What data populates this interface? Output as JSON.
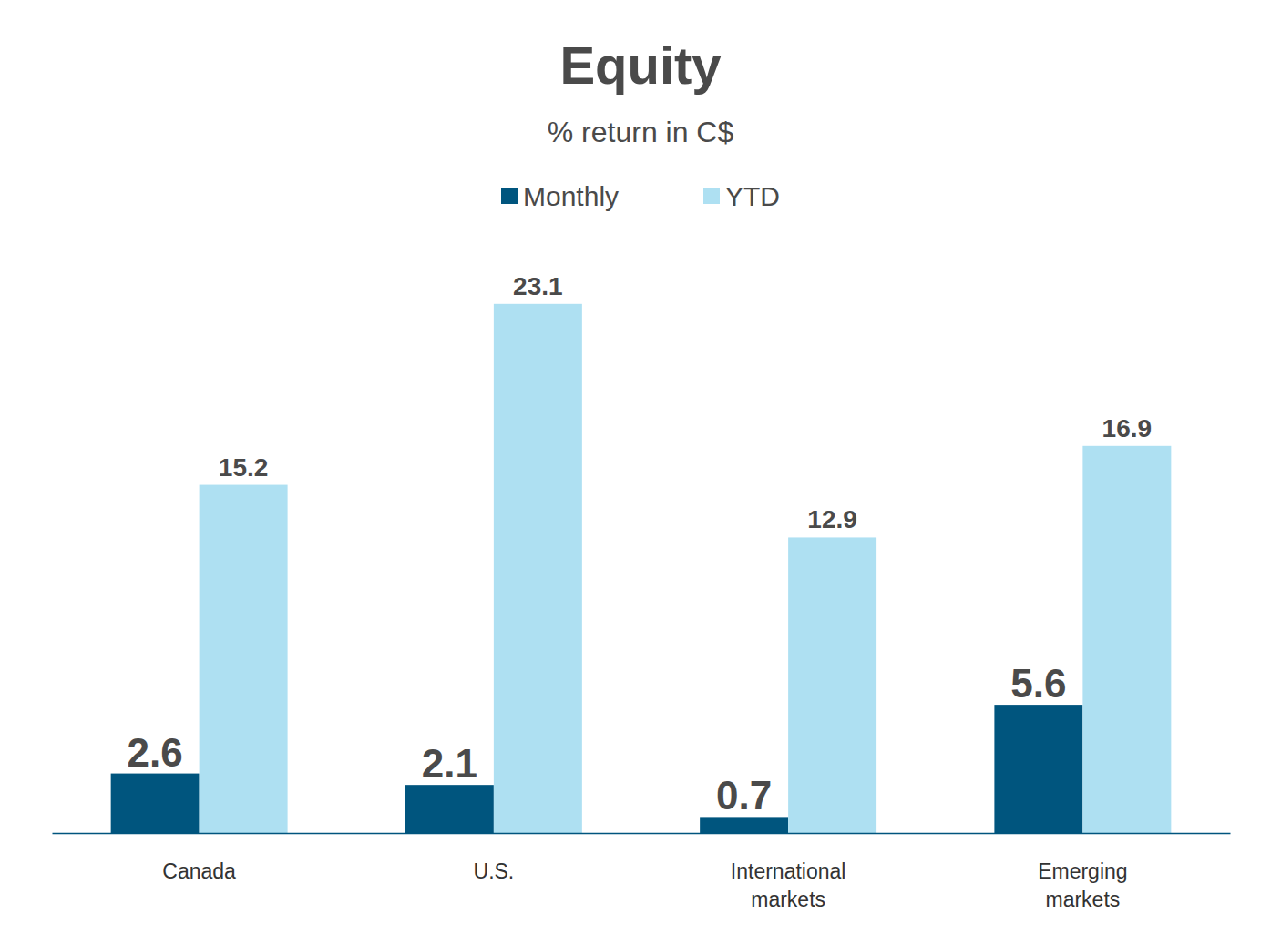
{
  "chart_data": {
    "type": "bar",
    "title": "Equity",
    "subtitle": "% return in C$",
    "categories": [
      "Canada",
      "U.S.",
      "International markets",
      "Emerging markets"
    ],
    "series": [
      {
        "name": "Monthly",
        "color": "#00557e",
        "values": [
          2.6,
          2.1,
          0.7,
          5.6
        ]
      },
      {
        "name": "YTD",
        "color": "#aee0f2",
        "values": [
          15.2,
          23.1,
          12.9,
          16.9
        ]
      }
    ],
    "ylim": [
      0,
      25
    ],
    "data_labels": true,
    "tick_labels": "x",
    "legend": "top",
    "grid": false
  }
}
